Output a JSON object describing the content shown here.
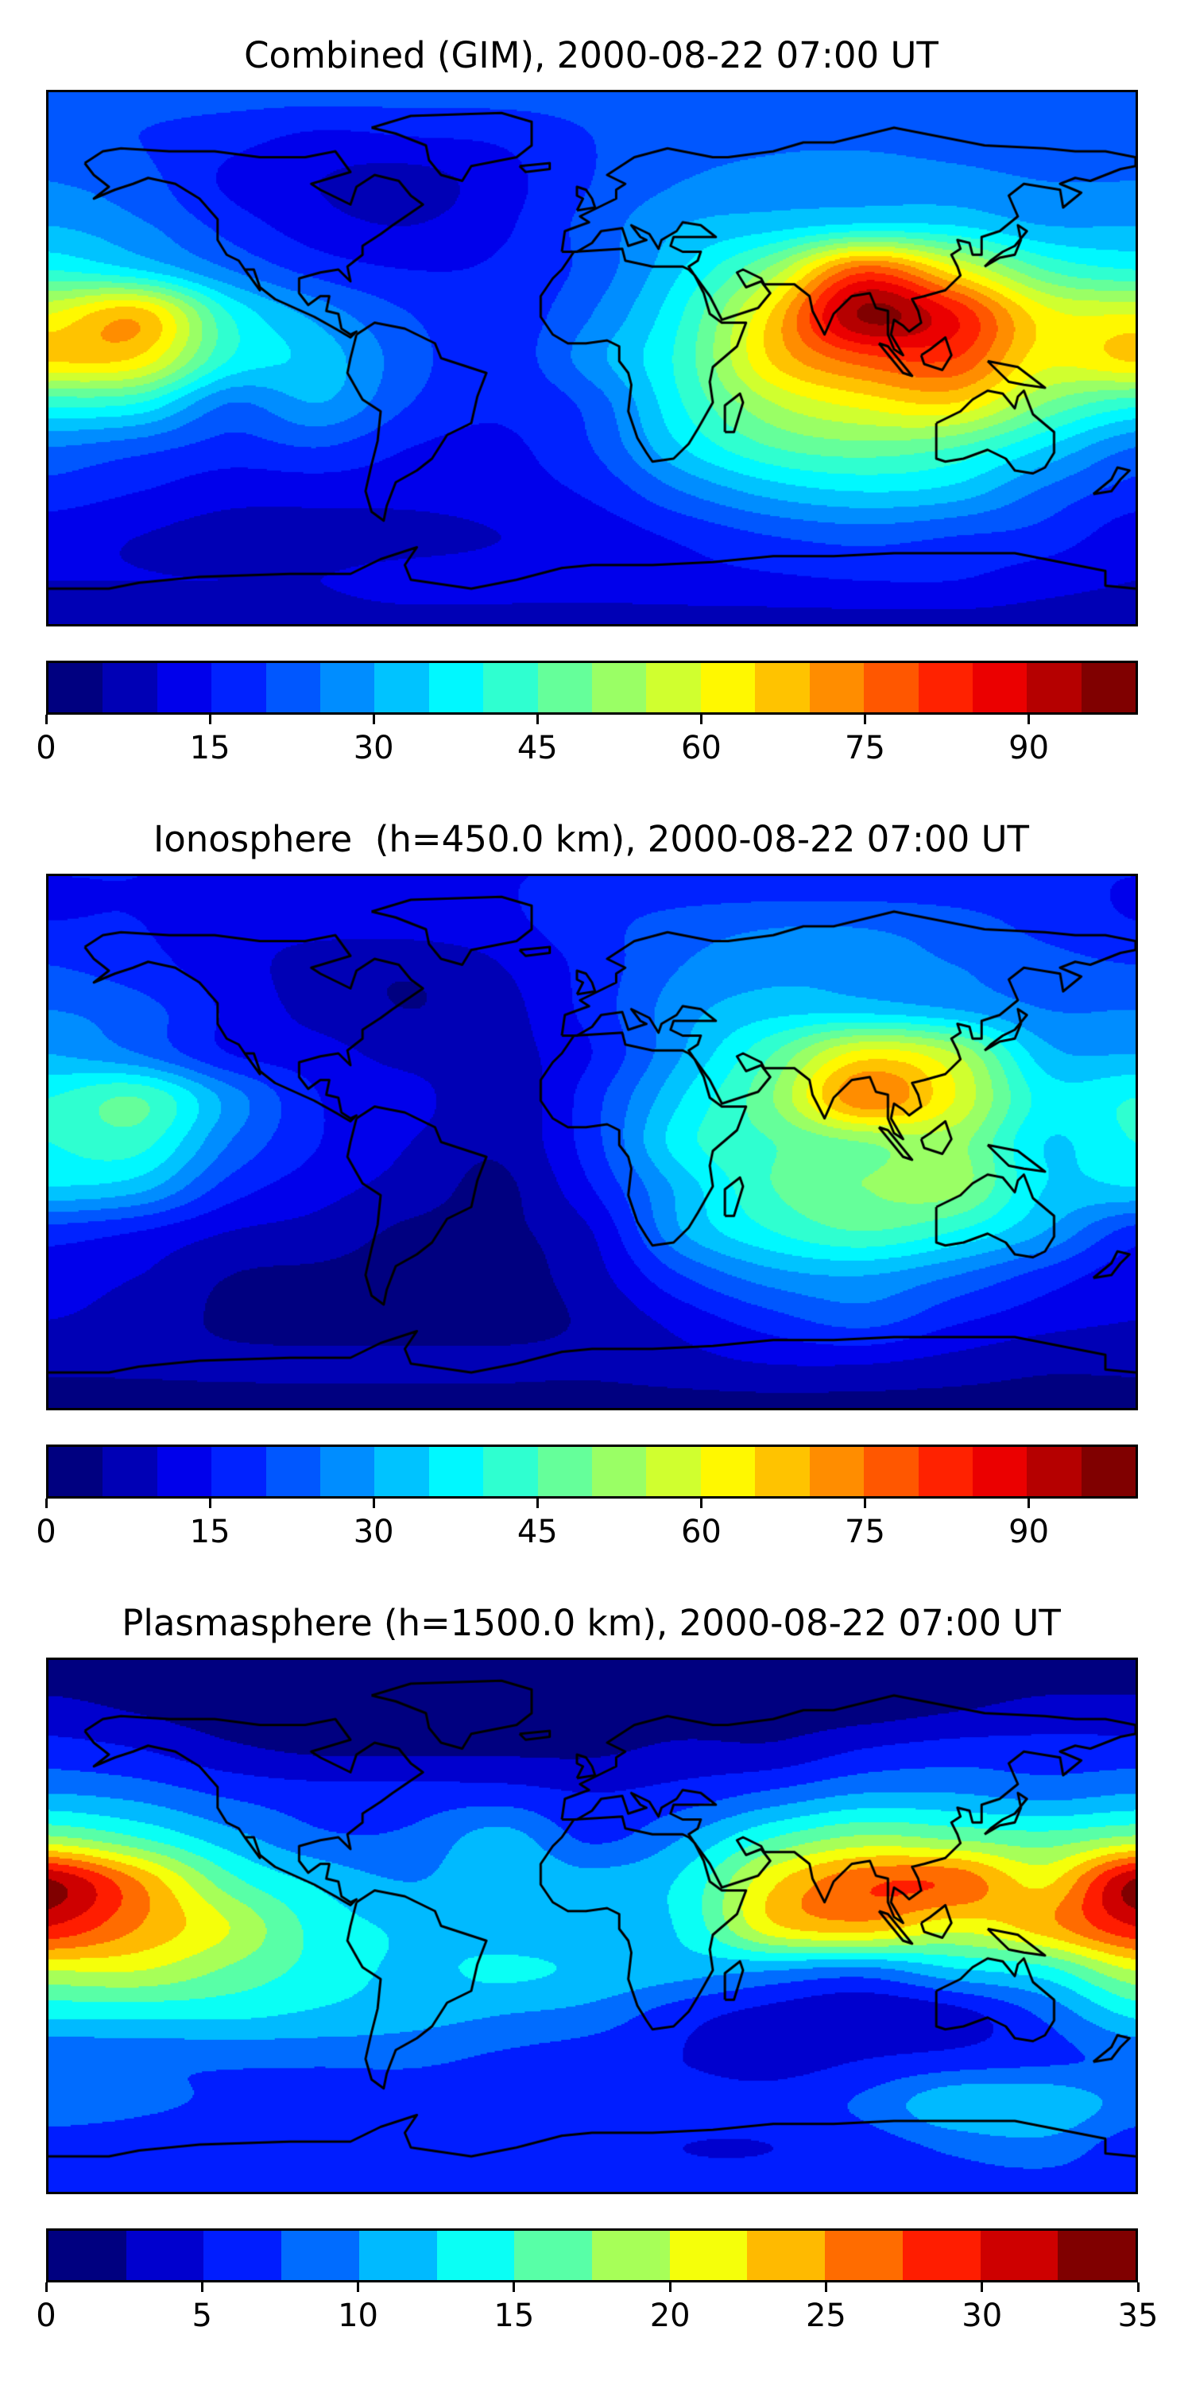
{
  "chart_data": [
    {
      "type": "heatmap",
      "title": "Combined (GIM), 2000-08-22 07:00 UT",
      "projection": "equirectangular",
      "xlim": [
        -180,
        180
      ],
      "ylim": [
        -90,
        90
      ],
      "levels": {
        "min": 0,
        "max": 100,
        "step": 5
      },
      "colormap": "jet",
      "colorbar_ticks": [
        "0",
        "15",
        "30",
        "45",
        "60",
        "75",
        "90"
      ],
      "colorbar_tick_values": [
        0,
        15,
        30,
        45,
        60,
        75,
        90
      ],
      "grid": {
        "lons": [
          -180,
          -150,
          -120,
          -90,
          -60,
          -30,
          0,
          30,
          60,
          90,
          120,
          150,
          180
        ],
        "lats": [
          90,
          75,
          60,
          45,
          30,
          15,
          0,
          -15,
          -30,
          -45,
          -60,
          -75,
          -90
        ],
        "values": [
          [
            22,
            22,
            22,
            22,
            22,
            22,
            22,
            22,
            22,
            22,
            22,
            22,
            22
          ],
          [
            22,
            20,
            17,
            14,
            15,
            16,
            20,
            23,
            24,
            24,
            23,
            22,
            22
          ],
          [
            25,
            22,
            14,
            10,
            8,
            13,
            20,
            25,
            27,
            28,
            27,
            25,
            25
          ],
          [
            30,
            26,
            18,
            12,
            10,
            14,
            22,
            30,
            33,
            36,
            35,
            30,
            30
          ],
          [
            40,
            35,
            25,
            18,
            15,
            16,
            22,
            35,
            52,
            78,
            62,
            45,
            40
          ],
          [
            60,
            68,
            40,
            28,
            20,
            17,
            25,
            40,
            66,
            96,
            85,
            62,
            60
          ],
          [
            66,
            64,
            40,
            33,
            22,
            17,
            28,
            42,
            66,
            78,
            80,
            62,
            66
          ],
          [
            42,
            40,
            25,
            30,
            20,
            16,
            22,
            40,
            55,
            62,
            65,
            50,
            42
          ],
          [
            25,
            22,
            18,
            20,
            15,
            14,
            20,
            35,
            45,
            48,
            45,
            35,
            25
          ],
          [
            18,
            15,
            12,
            12,
            12,
            13,
            16,
            25,
            32,
            35,
            33,
            24,
            18
          ],
          [
            12,
            10,
            8,
            8,
            8,
            10,
            12,
            16,
            20,
            22,
            20,
            18,
            12
          ],
          [
            10,
            10,
            10,
            10,
            12,
            12,
            12,
            13,
            14,
            15,
            15,
            12,
            10
          ],
          [
            8,
            8,
            8,
            8,
            8,
            8,
            8,
            8,
            8,
            8,
            8,
            8,
            8
          ]
        ]
      }
    },
    {
      "type": "heatmap",
      "title": "Ionosphere  (h=450.0 km), 2000-08-22 07:00 UT",
      "projection": "equirectangular",
      "xlim": [
        -180,
        180
      ],
      "ylim": [
        -90,
        90
      ],
      "levels": {
        "min": 0,
        "max": 100,
        "step": 5
      },
      "colormap": "jet",
      "colorbar_ticks": [
        "0",
        "15",
        "30",
        "45",
        "60",
        "75",
        "90"
      ],
      "colorbar_tick_values": [
        0,
        15,
        30,
        45,
        60,
        75,
        90
      ],
      "grid": {
        "lons": [
          -180,
          -150,
          -120,
          -90,
          -60,
          -30,
          0,
          30,
          60,
          90,
          120,
          150,
          180
        ],
        "lats": [
          90,
          75,
          60,
          45,
          30,
          15,
          0,
          -15,
          -30,
          -45,
          -60,
          -75,
          -90
        ],
        "values": [
          [
            15,
            15,
            15,
            15,
            15,
            15,
            15,
            15,
            15,
            15,
            15,
            15,
            15
          ],
          [
            15,
            15,
            12,
            12,
            13,
            14,
            18,
            22,
            24,
            24,
            22,
            18,
            15
          ],
          [
            20,
            17,
            12,
            8,
            6,
            10,
            17,
            25,
            28,
            28,
            25,
            22,
            20
          ],
          [
            25,
            22,
            14,
            8,
            5,
            8,
            17,
            28,
            33,
            33,
            30,
            25,
            25
          ],
          [
            30,
            25,
            15,
            12,
            8,
            8,
            15,
            30,
            45,
            62,
            55,
            32,
            30
          ],
          [
            40,
            45,
            28,
            15,
            12,
            6,
            18,
            35,
            50,
            74,
            60,
            38,
            40
          ],
          [
            40,
            42,
            25,
            15,
            10,
            6,
            18,
            38,
            45,
            50,
            52,
            35,
            40
          ],
          [
            35,
            32,
            18,
            12,
            8,
            4,
            15,
            32,
            45,
            50,
            52,
            35,
            35
          ],
          [
            18,
            15,
            10,
            8,
            4,
            4,
            10,
            30,
            40,
            45,
            40,
            30,
            18
          ],
          [
            12,
            10,
            5,
            4,
            3,
            3,
            8,
            20,
            28,
            30,
            25,
            18,
            12
          ],
          [
            10,
            8,
            4,
            3,
            3,
            3,
            6,
            12,
            18,
            22,
            16,
            12,
            10
          ],
          [
            6,
            6,
            6,
            6,
            6,
            6,
            6,
            8,
            10,
            10,
            8,
            6,
            6
          ],
          [
            3,
            3,
            3,
            3,
            3,
            3,
            3,
            3,
            3,
            3,
            3,
            3,
            3
          ]
        ]
      }
    },
    {
      "type": "heatmap",
      "title": "Plasmasphere (h=1500.0 km), 2000-08-22 07:00 UT",
      "projection": "equirectangular",
      "xlim": [
        -180,
        180
      ],
      "ylim": [
        -90,
        90
      ],
      "levels": {
        "min": 0,
        "max": 35,
        "step": 2.5
      },
      "colormap": "jet",
      "colorbar_ticks": [
        "0",
        "5",
        "10",
        "15",
        "20",
        "25",
        "30",
        "35"
      ],
      "colorbar_tick_values": [
        0,
        5,
        10,
        15,
        20,
        25,
        30,
        35
      ],
      "grid": {
        "lons": [
          -180,
          -150,
          -120,
          -90,
          -60,
          -30,
          0,
          30,
          60,
          90,
          120,
          150,
          180
        ],
        "lats": [
          90,
          75,
          60,
          45,
          30,
          15,
          0,
          -15,
          -30,
          -45,
          -60,
          -75,
          -90
        ],
        "values": [
          [
            1,
            1,
            1,
            1,
            1,
            1,
            1,
            1,
            1,
            1,
            1,
            1,
            1
          ],
          [
            3,
            2,
            1,
            1,
            1,
            1,
            1,
            1,
            1,
            1,
            2,
            3,
            3
          ],
          [
            6,
            5,
            3,
            2,
            2,
            2,
            2,
            3,
            3,
            5,
            6,
            6,
            6
          ],
          [
            10,
            9,
            7,
            6,
            6,
            6,
            5,
            6,
            8,
            10,
            10,
            9,
            10
          ],
          [
            18,
            15,
            11,
            8,
            8,
            11,
            7,
            10,
            15,
            18,
            17,
            16,
            18
          ],
          [
            33,
            25,
            16,
            12,
            10,
            12,
            11,
            13,
            22,
            27,
            27,
            22,
            33
          ],
          [
            30,
            25,
            20,
            14,
            12,
            11,
            11,
            13,
            22,
            24,
            21,
            24,
            30
          ],
          [
            20,
            20,
            17,
            14,
            12,
            13,
            12,
            11,
            10,
            9,
            12,
            14,
            20
          ],
          [
            13,
            13,
            13,
            12,
            11,
            10,
            9,
            6,
            4,
            3,
            4,
            8,
            13
          ],
          [
            8,
            8,
            8,
            8,
            8,
            7,
            6,
            5,
            4,
            5,
            6,
            7,
            8
          ],
          [
            9,
            8,
            7,
            6,
            6,
            6,
            6,
            6,
            6,
            8,
            12,
            12,
            9
          ],
          [
            6,
            6,
            6,
            6,
            6,
            6,
            6,
            5,
            5,
            6,
            8,
            9,
            6
          ],
          [
            6,
            6,
            6,
            6,
            6,
            6,
            6,
            6,
            6,
            6,
            6,
            6,
            6
          ]
        ]
      }
    }
  ]
}
